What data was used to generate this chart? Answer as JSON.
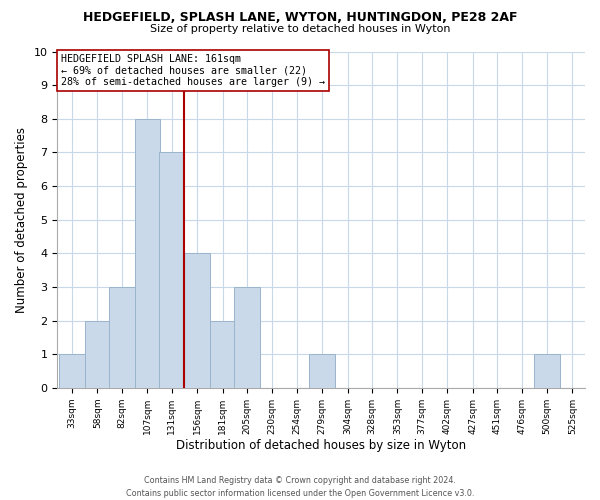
{
  "title": "HEDGEFIELD, SPLASH LANE, WYTON, HUNTINGDON, PE28 2AF",
  "subtitle": "Size of property relative to detached houses in Wyton",
  "xlabel": "Distribution of detached houses by size in Wyton",
  "ylabel": "Number of detached properties",
  "bin_labels": [
    "33sqm",
    "58sqm",
    "82sqm",
    "107sqm",
    "131sqm",
    "156sqm",
    "181sqm",
    "205sqm",
    "230sqm",
    "254sqm",
    "279sqm",
    "304sqm",
    "328sqm",
    "353sqm",
    "377sqm",
    "402sqm",
    "427sqm",
    "451sqm",
    "476sqm",
    "500sqm",
    "525sqm"
  ],
  "bar_values": [
    1,
    2,
    3,
    8,
    7,
    4,
    2,
    3,
    0,
    0,
    1,
    0,
    0,
    0,
    0,
    0,
    0,
    0,
    0,
    1,
    0
  ],
  "bar_color": "#c9d9e9",
  "bar_edge_color": "#9ab4cc",
  "subject_line_color": "#aa0000",
  "annotation_title": "HEDGEFIELD SPLASH LANE: 161sqm",
  "annotation_line1": "← 69% of detached houses are smaller (22)",
  "annotation_line2": "28% of semi-detached houses are larger (9) →",
  "annotation_box_color": "#ffffff",
  "annotation_box_edge": "#aa0000",
  "ylim": [
    0,
    10
  ],
  "bin_starts": [
    33,
    58,
    82,
    107,
    131,
    156,
    181,
    205,
    230,
    254,
    279,
    304,
    328,
    353,
    377,
    402,
    427,
    451,
    476,
    500,
    525
  ],
  "bin_width": 25,
  "footer_line1": "Contains HM Land Registry data © Crown copyright and database right 2024.",
  "footer_line2": "Contains public sector information licensed under the Open Government Licence v3.0.",
  "background_color": "#ffffff",
  "grid_color": "#c8d8e8",
  "subject_bin_index": 5,
  "subject_value": 161
}
